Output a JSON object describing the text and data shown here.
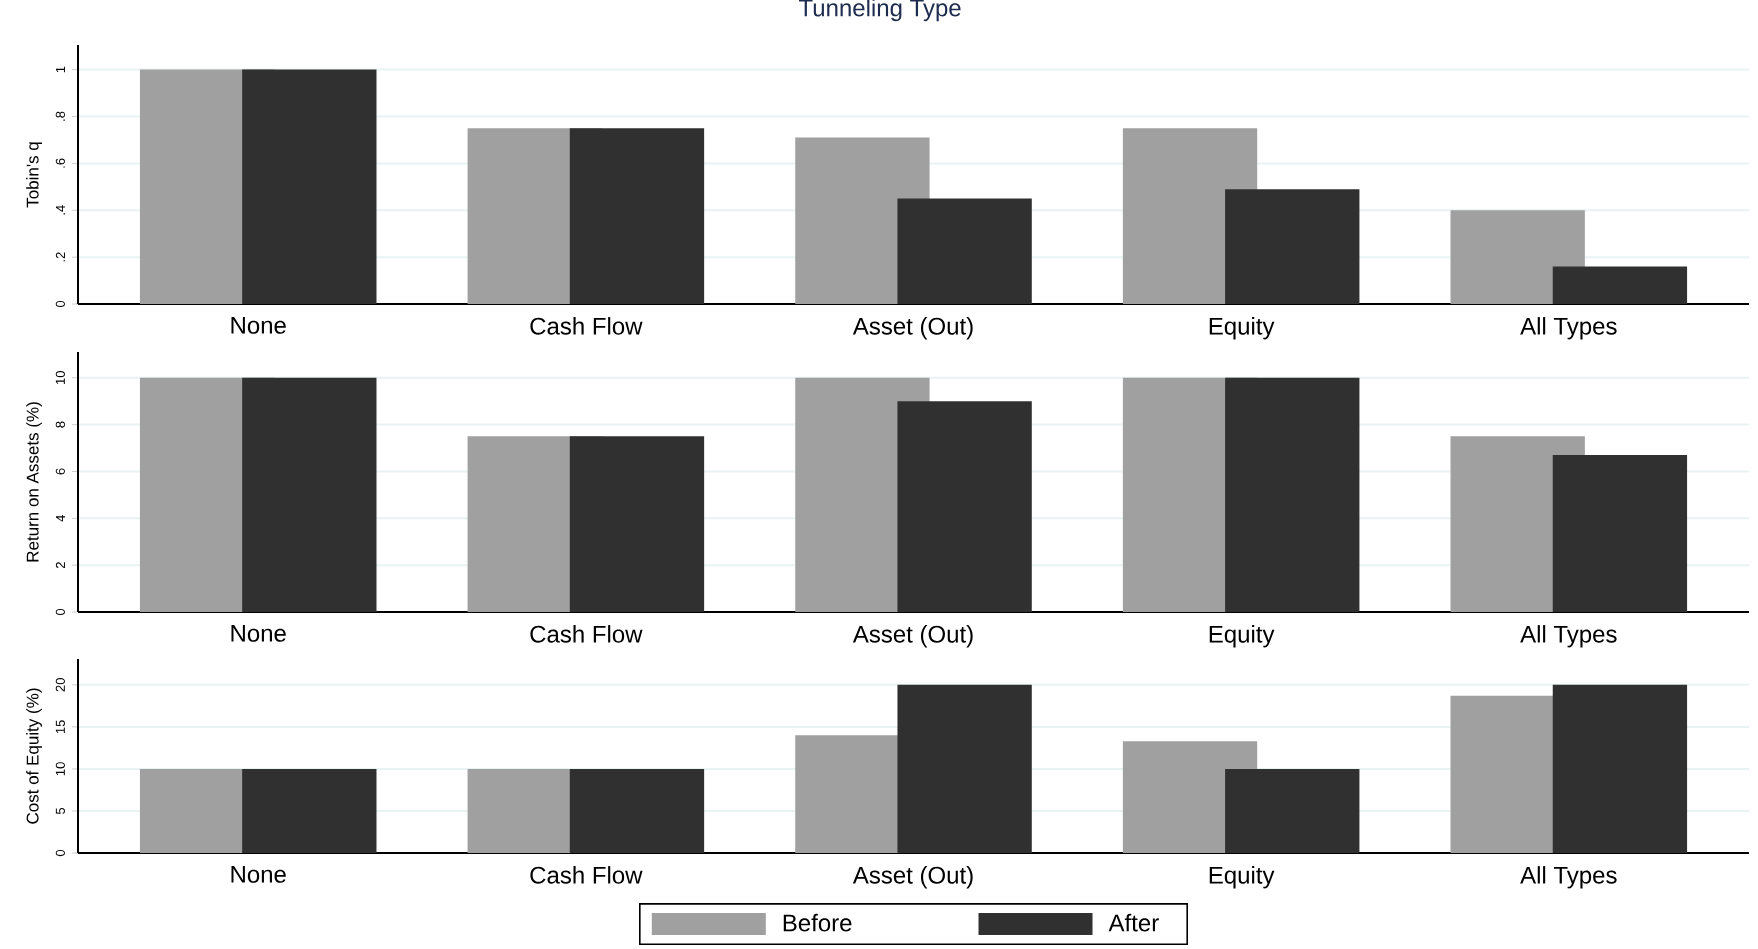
{
  "chart_data": [
    {
      "type": "bar",
      "title": "Tunneling Type",
      "ylabel": "Tobin's q",
      "categories": [
        "None",
        "Cash Flow",
        "Asset (Out)",
        "Equity",
        "All Types"
      ],
      "series": [
        {
          "color": "#a0a0a0",
          "values": [
            1,
            0.75,
            0.71,
            0.75,
            0.4
          ]
        },
        {
          "color": "#303030",
          "values": [
            1,
            0.75,
            0.45,
            0.49,
            0.16
          ]
        }
      ],
      "ylim": [
        0,
        1.105
      ],
      "yticks": [
        0,
        {
          "value": 0.2,
          "label": ".2"
        },
        {
          "value": 0.4,
          "label": ".4"
        },
        {
          "value": 0.6,
          "label": ".6"
        },
        {
          "value": 0.8,
          "label": ".8"
        },
        1
      ],
      "grid": "y",
      "legend": false
    },
    {
      "type": "bar",
      "ylabel": "Return on Assets (%)",
      "categories": [
        "None",
        "Cash Flow",
        "Asset (Out)",
        "Equity",
        "All Types"
      ],
      "series": [
        {
          "color": "#a0a0a0",
          "values": [
            10,
            7.5,
            10,
            10,
            7.5
          ]
        },
        {
          "color": "#303030",
          "values": [
            10,
            7.5,
            9,
            10,
            6.7
          ]
        }
      ],
      "ylim": [
        0,
        11.1
      ],
      "yticks": [
        0,
        2,
        4,
        6,
        8,
        10
      ],
      "grid": "y",
      "legend": false
    },
    {
      "type": "bar",
      "ylabel": "Cost of Equity (%)",
      "categories": [
        "None",
        "Cash Flow",
        "Asset (Out)",
        "Equity",
        "All Types"
      ],
      "series": [
        {
          "name": "Before",
          "color": "#a0a0a0",
          "values": [
            10,
            10,
            14,
            13.3,
            18.7
          ]
        },
        {
          "name": "After",
          "color": "#303030",
          "values": [
            10,
            10,
            20,
            10,
            20
          ]
        }
      ],
      "ylim": [
        0,
        23.07
      ],
      "yticks": [
        0,
        5,
        10,
        15,
        20
      ],
      "grid": "y",
      "legend": "bottom"
    }
  ]
}
